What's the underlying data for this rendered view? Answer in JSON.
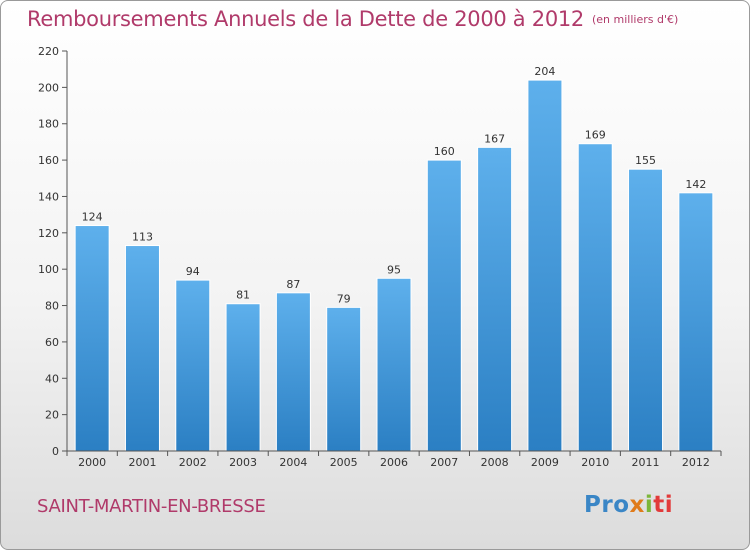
{
  "chart_data": {
    "type": "bar",
    "title": "Remboursements Annuels de la Dette de 2000 à 2012",
    "unit_label": "(en milliers d'€)",
    "categories": [
      "2000",
      "2001",
      "2002",
      "2003",
      "2004",
      "2005",
      "2006",
      "2007",
      "2008",
      "2009",
      "2010",
      "2011",
      "2012"
    ],
    "values": [
      124,
      113,
      94,
      81,
      87,
      79,
      95,
      160,
      167,
      204,
      169,
      155,
      142
    ],
    "ylim": [
      0,
      220
    ],
    "yticks": [
      0,
      20,
      40,
      60,
      80,
      100,
      120,
      140,
      160,
      180,
      200,
      220
    ],
    "grid": false,
    "bar_color": "#3d8fd4"
  },
  "footer": {
    "commune": "SAINT-MARTIN-EN-BRESSE",
    "logo": {
      "p1": "Pro",
      "p2": "x",
      "p3": "i",
      "p4": "ti"
    }
  }
}
